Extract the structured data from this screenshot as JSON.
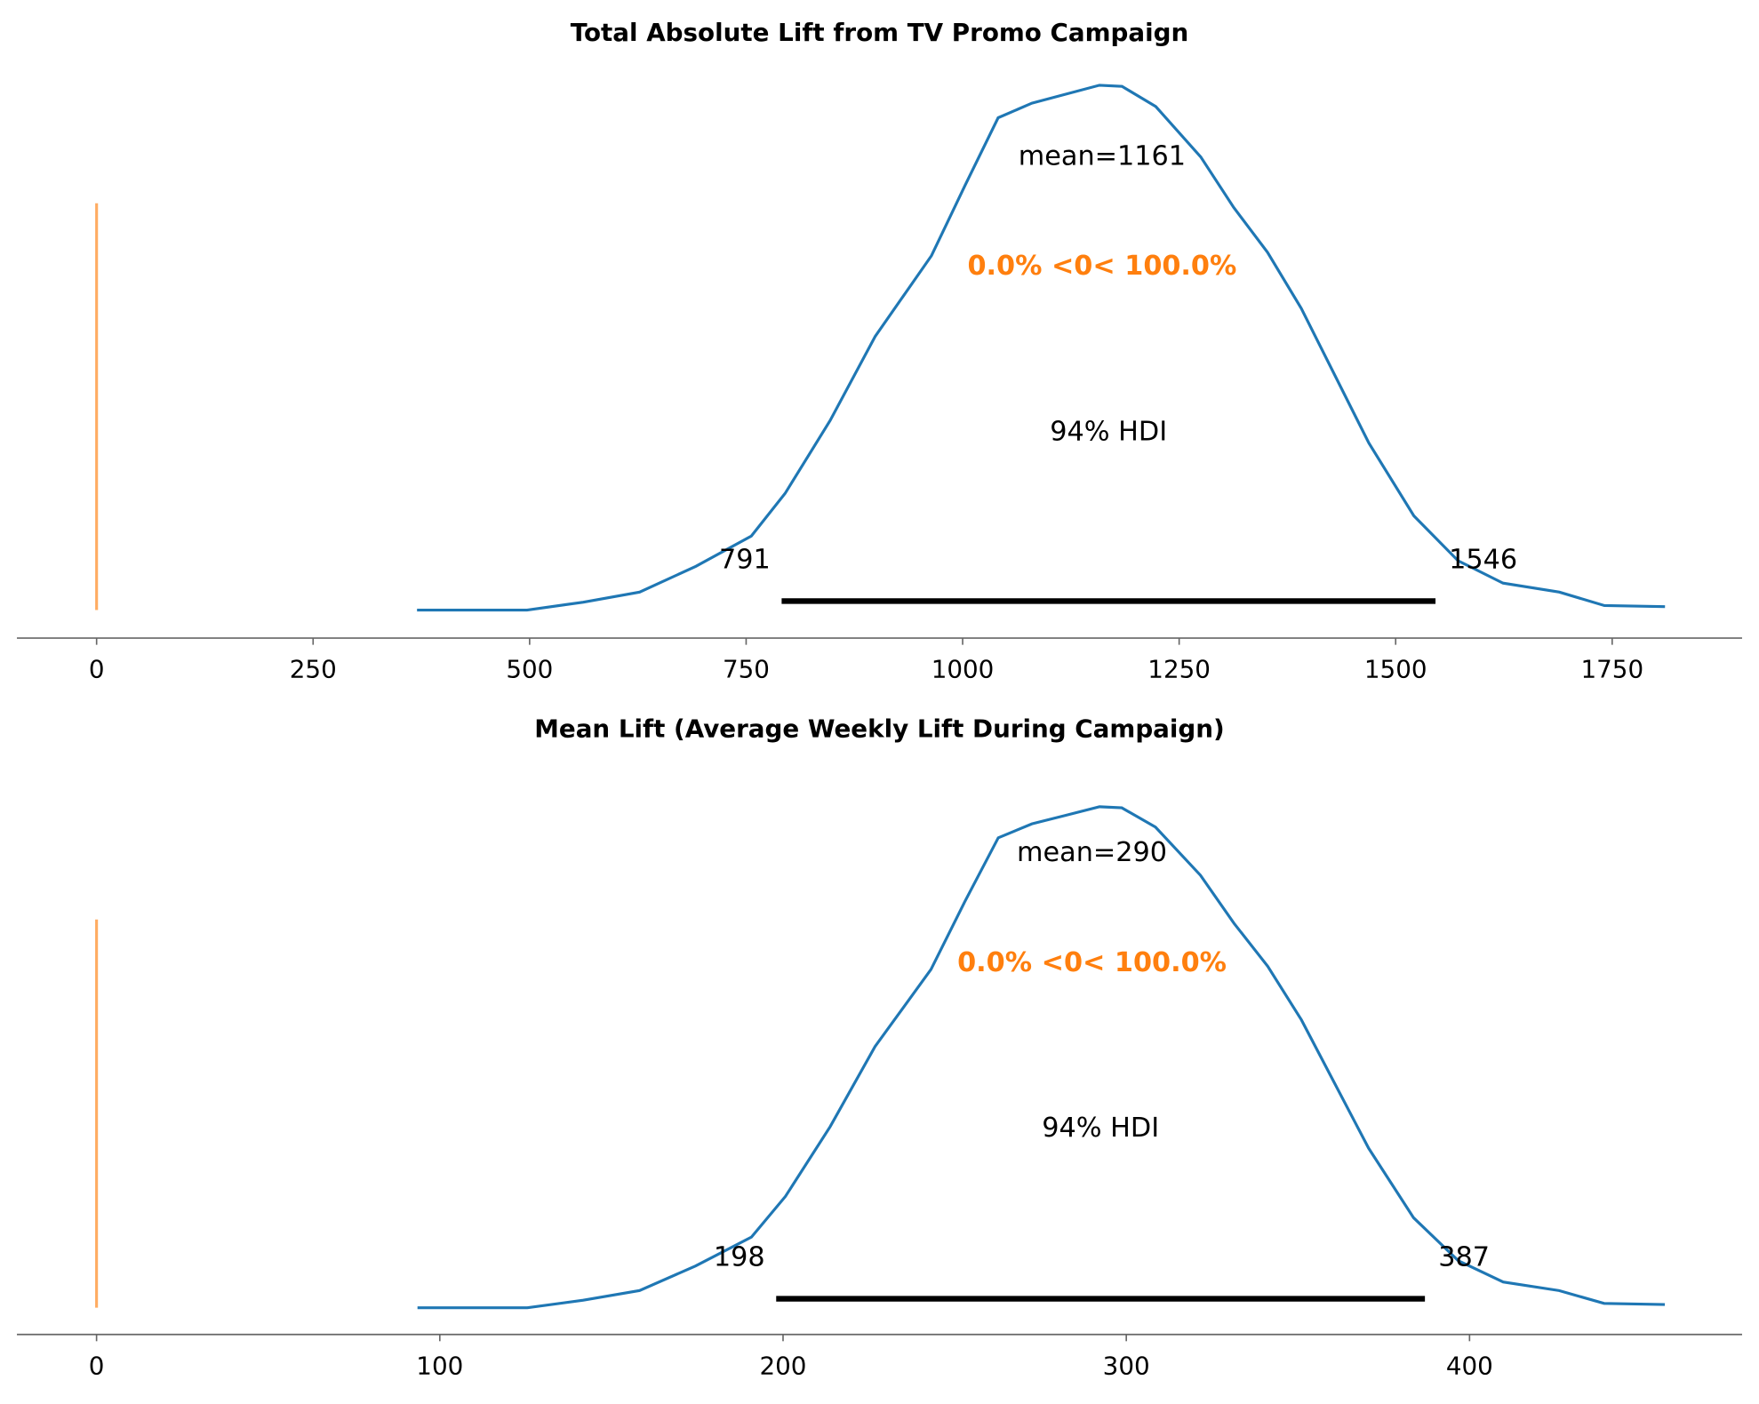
{
  "chart_data": [
    {
      "type": "kde",
      "title": "Total Absolute Lift from TV Promo Campaign",
      "x": [
        370,
        497,
        562,
        627,
        692,
        756,
        795,
        847,
        899,
        964,
        1003,
        1041,
        1080,
        1119,
        1158,
        1184,
        1223,
        1275,
        1313,
        1352,
        1391,
        1430,
        1469,
        1521,
        1572,
        1624,
        1689,
        1741,
        1811
      ],
      "values": [
        0,
        0,
        2.8e-05,
        6.4e-05,
        0.000156,
        0.000264,
        0.000416,
        0.000676,
        0.000976,
        0.001264,
        0.001516,
        0.001756,
        0.001808,
        0.00184,
        0.001872,
        0.001868,
        0.001796,
        0.001616,
        0.001436,
        0.001276,
        0.001076,
        0.000836,
        0.000596,
        0.000336,
        0.000176,
        9.6e-05,
        6.4e-05,
        1.6e-05,
        1.2e-05
      ],
      "color": "#1f77b4",
      "mean": 1161,
      "mean_label": "mean=1161",
      "hdi": [
        791,
        1546
      ],
      "hdi_label": "94% HDI",
      "ref_value": 0,
      "ref_label": "0.0% <0< 100.0%",
      "ref_color": "#ff7f0e",
      "xlim": [
        -92,
        1900
      ],
      "xticks": [
        0,
        250,
        500,
        750,
        1000,
        1250,
        1500,
        1750
      ],
      "ylim": [
        -0.0001,
        0.002
      ]
    },
    {
      "type": "kde",
      "title": "Mean Lift (Average Weekly Lift During Campaign)",
      "x": [
        93.5,
        125.5,
        141.8,
        158.2,
        174.5,
        190.8,
        200.7,
        213.7,
        226.8,
        243.1,
        252.9,
        262.7,
        272.5,
        282.4,
        292.2,
        298.7,
        308.5,
        321.6,
        331.4,
        341.2,
        351.0,
        360.8,
        370.6,
        383.7,
        396.7,
        409.8,
        426.1,
        439.2,
        456.9
      ],
      "values": [
        0,
        0,
        0.000112,
        0.000256,
        0.000624,
        0.001056,
        0.001664,
        0.002704,
        0.003904,
        0.005056,
        0.006064,
        0.007024,
        0.007232,
        0.00736,
        0.007488,
        0.007472,
        0.007184,
        0.006464,
        0.005744,
        0.005104,
        0.004304,
        0.003344,
        0.002384,
        0.001344,
        0.000704,
        0.000384,
        0.000256,
        6.4e-05,
        4.8e-05
      ],
      "color": "#1f77b4",
      "mean": 290,
      "mean_label": "mean=290",
      "hdi": [
        198,
        387
      ],
      "hdi_label": "94% HDI",
      "ref_value": 0,
      "ref_label": "0.0% <0< 100.0%",
      "ref_color": "#ff7f0e",
      "xlim": [
        -23.2,
        479.4
      ],
      "xticks": [
        0,
        100,
        200,
        300,
        400
      ],
      "ylim": [
        -0.0004,
        0.0084
      ]
    }
  ]
}
